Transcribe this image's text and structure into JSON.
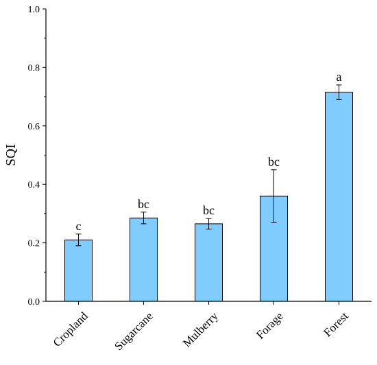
{
  "chart_data": {
    "type": "bar",
    "title": "",
    "xlabel": "",
    "ylabel": "SQI",
    "ylim": [
      0,
      1.0
    ],
    "yticks": [
      "0.0",
      "0.2",
      "0.4",
      "0.6",
      "0.8",
      "1.0"
    ],
    "yticks_values": [
      0.0,
      0.2,
      0.4,
      0.6,
      0.8,
      1.0
    ],
    "grid": false,
    "categories": [
      "Cropland",
      "Sugarcane",
      "Mulberry",
      "Forage",
      "Forest"
    ],
    "values": [
      0.21,
      0.285,
      0.265,
      0.36,
      0.715
    ],
    "errors": [
      0.02,
      0.02,
      0.018,
      0.09,
      0.025
    ],
    "significance_labels": [
      "c",
      "bc",
      "bc",
      "bc",
      "a"
    ],
    "bar_color": "#80CCFF",
    "bar_edge_color": "#000000"
  }
}
